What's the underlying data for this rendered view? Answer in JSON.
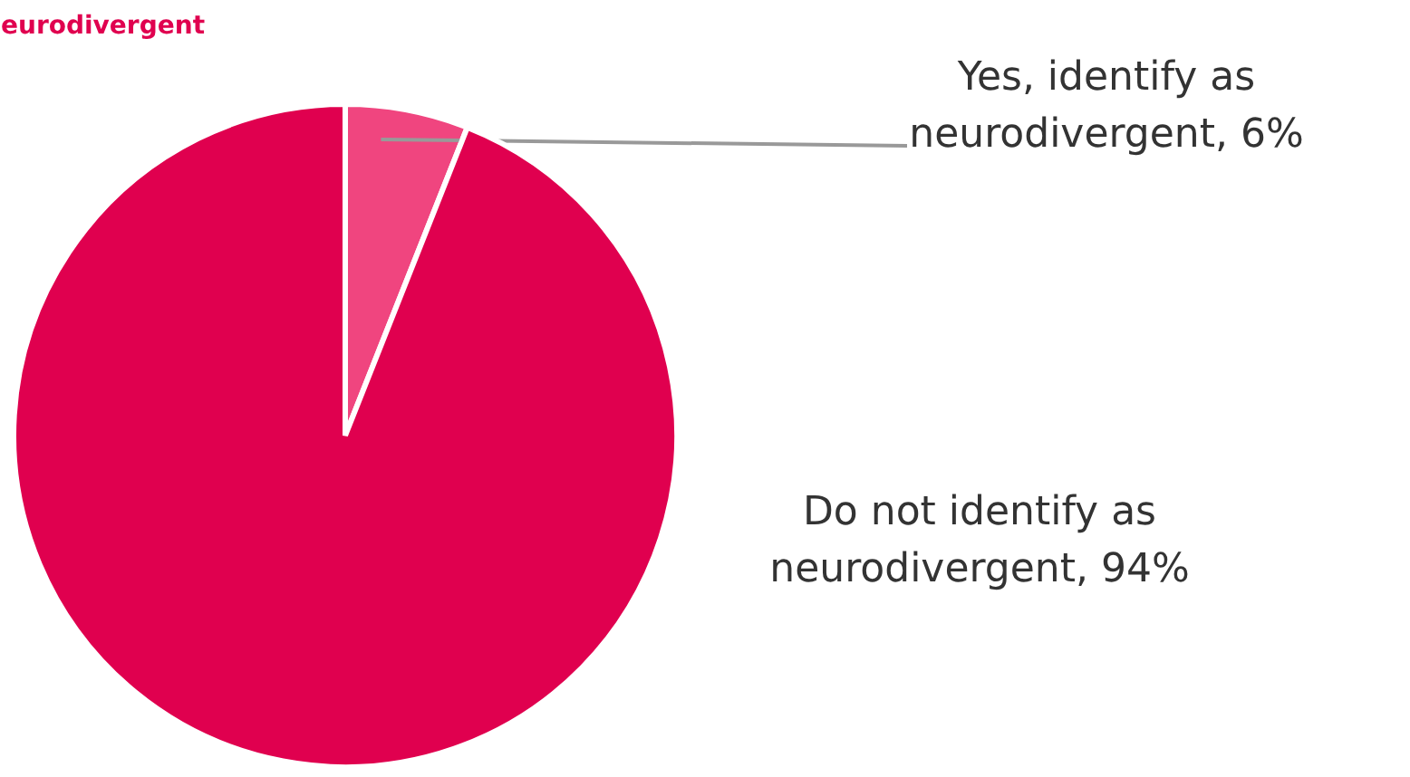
{
  "chart_data": {
    "type": "pie",
    "title": "eurodivergent",
    "categories": [
      "Yes, identify as neurodivergent",
      "Do not identify as neurodivergent"
    ],
    "values": [
      6,
      94
    ],
    "value_labels": [
      "6%",
      "94%"
    ],
    "colors": [
      "#f0457f",
      "#e0004f"
    ]
  }
}
